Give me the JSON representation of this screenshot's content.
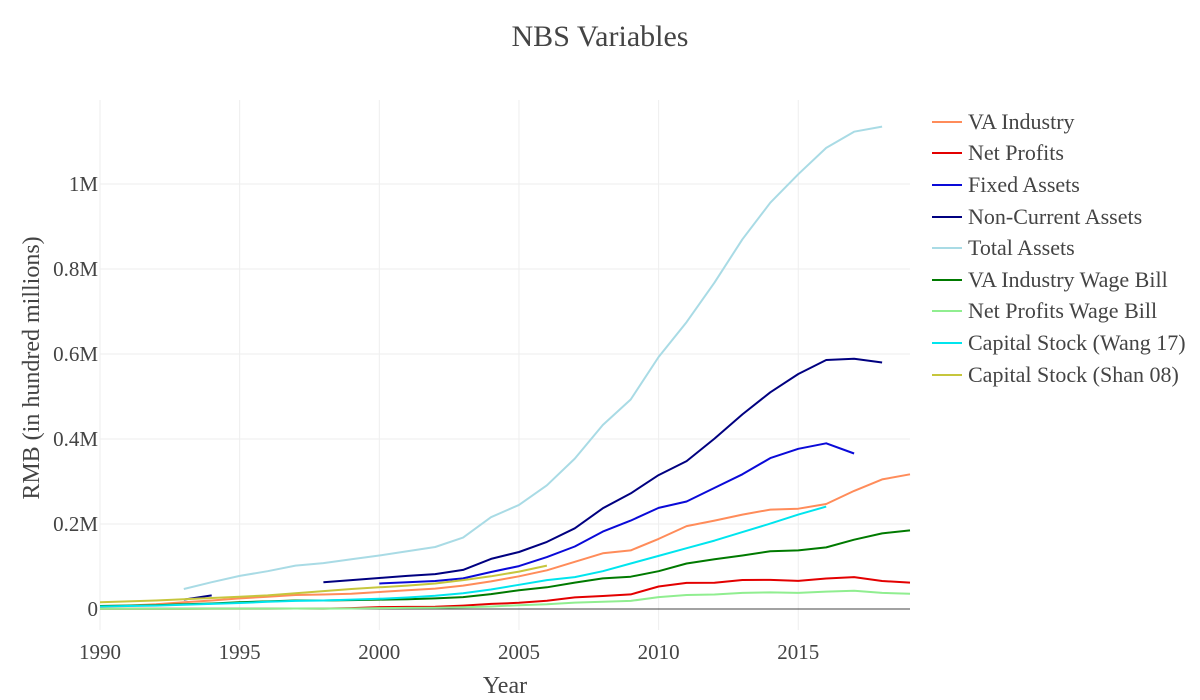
{
  "chart_data": {
    "type": "line",
    "title": "NBS Variables",
    "xlabel": "Year",
    "ylabel": "RMB (in hundred millions)",
    "xlim": [
      1990,
      2019
    ],
    "ylim": [
      -0.05,
      1.2
    ],
    "x_ticks": [
      {
        "value": 1990,
        "label": "1990"
      },
      {
        "value": 1995,
        "label": "1995"
      },
      {
        "value": 2000,
        "label": "2000"
      },
      {
        "value": 2005,
        "label": "2005"
      },
      {
        "value": 2010,
        "label": "2010"
      },
      {
        "value": 2015,
        "label": "2015"
      }
    ],
    "y_ticks": [
      {
        "value": 0,
        "label": "0"
      },
      {
        "value": 0.2,
        "label": "0.2M"
      },
      {
        "value": 0.4,
        "label": "0.4M"
      },
      {
        "value": 0.6,
        "label": "0.6M"
      },
      {
        "value": 0.8,
        "label": "0.8M"
      },
      {
        "value": 1.0,
        "label": "1M"
      }
    ],
    "grid": true,
    "legend_position": "right",
    "series": [
      {
        "name": "VA Industry",
        "color": "#ff8c5a",
        "x": [
          1990,
          1991,
          1992,
          1993,
          1994,
          1995,
          1996,
          1997,
          1998,
          1999,
          2000,
          2001,
          2002,
          2003,
          2004,
          2005,
          2006,
          2007,
          2008,
          2009,
          2010,
          2011,
          2012,
          2013,
          2014,
          2015,
          2016,
          2017,
          2018,
          2019
        ],
        "y": [
          0.007,
          0.008,
          0.011,
          0.016,
          0.02,
          0.025,
          0.029,
          0.033,
          0.034,
          0.036,
          0.04,
          0.044,
          0.048,
          0.055,
          0.065,
          0.077,
          0.091,
          0.111,
          0.131,
          0.138,
          0.165,
          0.195,
          0.208,
          0.222,
          0.234,
          0.236,
          0.247,
          0.278,
          0.305,
          0.317
        ]
      },
      {
        "name": "Net Profits",
        "color": "#e30000",
        "x": [
          1990,
          1991,
          1992,
          1993,
          1994,
          1995,
          1996,
          1997,
          1998,
          1999,
          2000,
          2001,
          2002,
          2003,
          2004,
          2005,
          2006,
          2007,
          2008,
          2009,
          2010,
          2011,
          2012,
          2013,
          2014,
          2015,
          2016,
          2017,
          2018,
          2019
        ],
        "y": [
          0.0004,
          0.0005,
          0.0006,
          0.0008,
          0.001,
          0.001,
          0.001,
          0.0012,
          0.001,
          0.002,
          0.0045,
          0.005,
          0.0055,
          0.0081,
          0.0119,
          0.0147,
          0.0195,
          0.0272,
          0.0305,
          0.0343,
          0.053,
          0.0615,
          0.0617,
          0.0683,
          0.0685,
          0.0662,
          0.0718,
          0.075,
          0.066,
          0.062
        ]
      },
      {
        "name": "Fixed Assets",
        "color": "#0a0ad8",
        "x": [
          2000,
          2001,
          2002,
          2003,
          2004,
          2005,
          2006,
          2007,
          2008,
          2009,
          2010,
          2011,
          2012,
          2013,
          2014,
          2015,
          2016,
          2017
        ],
        "y": [
          0.06,
          0.063,
          0.066,
          0.072,
          0.087,
          0.101,
          0.122,
          0.147,
          0.182,
          0.208,
          0.238,
          0.253,
          0.285,
          0.317,
          0.355,
          0.377,
          0.39,
          0.366
        ]
      },
      {
        "name": "Non-Current Assets",
        "color": "#000080",
        "x": [
          1993,
          1994,
          null,
          1998,
          1999,
          2000,
          2001,
          2002,
          2003,
          2004,
          2005,
          2006,
          2007,
          2008,
          2009,
          2010,
          2011,
          2012,
          2013,
          2014,
          2015,
          2016,
          2017,
          2018
        ],
        "y": [
          0.022,
          0.032,
          null,
          0.063,
          0.068,
          0.073,
          0.078,
          0.082,
          0.092,
          0.118,
          0.134,
          0.158,
          0.19,
          0.237,
          0.272,
          0.315,
          0.348,
          0.401,
          0.458,
          0.51,
          0.553,
          0.586,
          0.589,
          0.58
        ]
      },
      {
        "name": "Total Assets",
        "color": "#a9dbe5",
        "x": [
          1993,
          1994,
          1995,
          1996,
          1997,
          1998,
          1999,
          2000,
          2001,
          2002,
          2003,
          2004,
          2005,
          2006,
          2007,
          2008,
          2009,
          2010,
          2011,
          2012,
          2013,
          2014,
          2015,
          2016,
          2017,
          2018
        ],
        "y": [
          0.047,
          0.063,
          0.078,
          0.089,
          0.102,
          0.108,
          0.117,
          0.126,
          0.136,
          0.146,
          0.168,
          0.216,
          0.245,
          0.291,
          0.354,
          0.433,
          0.493,
          0.593,
          0.675,
          0.768,
          0.87,
          0.956,
          1.023,
          1.085,
          1.123,
          1.135
        ]
      },
      {
        "name": "VA Industry Wage Bill",
        "color": "#007a00",
        "x": [
          1990,
          1991,
          1992,
          1993,
          1994,
          1995,
          1996,
          1997,
          1998,
          1999,
          2000,
          2001,
          2002,
          2003,
          2004,
          2005,
          2006,
          2007,
          2008,
          2009,
          2010,
          2011,
          2012,
          2013,
          2014,
          2015,
          2016,
          2017,
          2018,
          2019
        ],
        "y": [
          0.007,
          0.008,
          0.009,
          0.011,
          0.013,
          0.016,
          0.018,
          0.02,
          0.02,
          0.021,
          0.022,
          0.023,
          0.025,
          0.028,
          0.035,
          0.044,
          0.051,
          0.062,
          0.072,
          0.076,
          0.089,
          0.107,
          0.117,
          0.126,
          0.136,
          0.138,
          0.145,
          0.163,
          0.178,
          0.185
        ]
      },
      {
        "name": "Net Profits Wage Bill",
        "color": "#90ee90",
        "x": [
          1990,
          1991,
          1992,
          1993,
          1994,
          1995,
          1996,
          1997,
          1998,
          1999,
          2000,
          2001,
          2002,
          2003,
          2004,
          2005,
          2006,
          2007,
          2008,
          2009,
          2010,
          2011,
          2012,
          2013,
          2014,
          2015,
          2016,
          2017,
          2018,
          2019
        ],
        "y": [
          0.0005,
          0.0006,
          0.0007,
          0.0008,
          0.001,
          0.001,
          0.001,
          0.0011,
          0.001,
          0.0012,
          0.002,
          0.0025,
          0.003,
          0.004,
          0.006,
          0.009,
          0.011,
          0.015,
          0.017,
          0.019,
          0.028,
          0.033,
          0.034,
          0.038,
          0.039,
          0.038,
          0.041,
          0.043,
          0.038,
          0.036
        ]
      },
      {
        "name": "Capital Stock (Wang 17)",
        "color": "#00e5ee",
        "x": [
          1990,
          1991,
          1992,
          1993,
          1994,
          1995,
          1996,
          1997,
          1998,
          1999,
          2000,
          2001,
          2002,
          2003,
          2004,
          2005,
          2006,
          2007,
          2008,
          2009,
          2010,
          2011,
          2012,
          2013,
          2014,
          2015,
          2016
        ],
        "y": [
          0.006,
          0.007,
          0.008,
          0.01,
          0.012,
          0.014,
          0.017,
          0.019,
          0.02,
          0.022,
          0.024,
          0.027,
          0.031,
          0.037,
          0.046,
          0.057,
          0.068,
          0.075,
          0.089,
          0.107,
          0.125,
          0.143,
          0.161,
          0.181,
          0.201,
          0.222,
          0.241
        ]
      },
      {
        "name": "Capital Stock (Shan 08)",
        "color": "#c6c63c",
        "x": [
          1990,
          1991,
          1992,
          1993,
          1994,
          1995,
          1996,
          1997,
          1998,
          1999,
          2000,
          2001,
          2002,
          2003,
          2004,
          2005,
          2006
        ],
        "y": [
          0.016,
          0.018,
          0.02,
          0.023,
          0.026,
          0.029,
          0.032,
          0.037,
          0.042,
          0.047,
          0.051,
          0.055,
          0.06,
          0.068,
          0.077,
          0.088,
          0.102
        ]
      }
    ]
  }
}
